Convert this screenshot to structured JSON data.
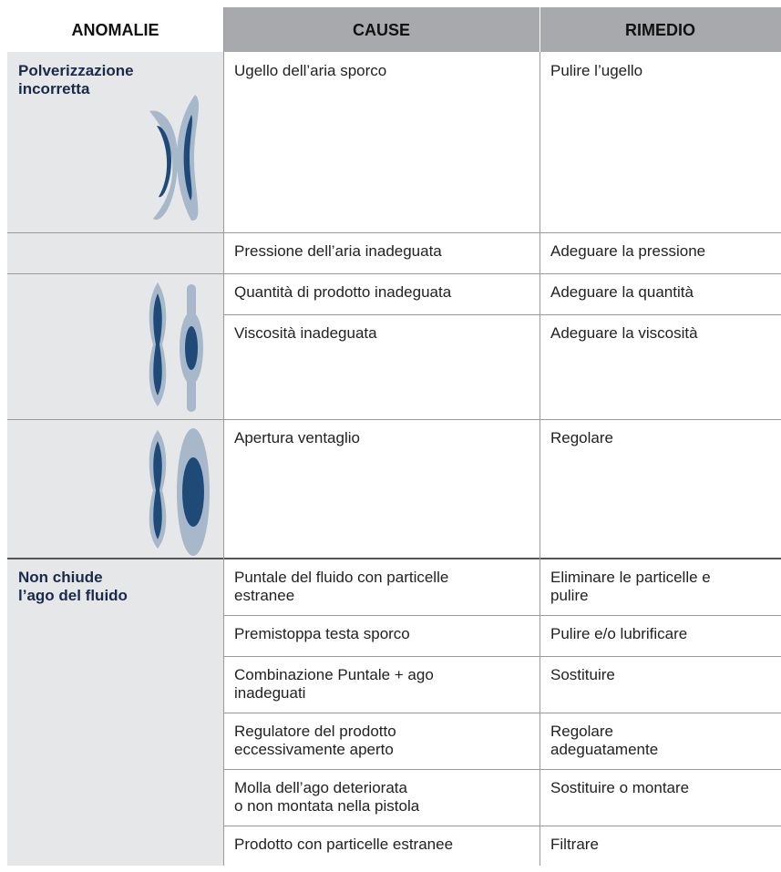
{
  "table": {
    "header": [
      "ANOMALIE",
      "CAUSE",
      "RIMEDIO"
    ],
    "anomalies": [
      "Polverizzazione\nincorretta",
      "Non chiude\nl’ago del fluido"
    ],
    "rows": [
      [
        "Ugello dell’aria sporco",
        "Pulire l’ugello"
      ],
      [
        "Pressione dell’aria inadeguata",
        "Adeguare la pressione"
      ],
      [
        "Quantità di prodotto inadeguata",
        "Adeguare la quantità"
      ],
      [
        "Viscosità inadeguata",
        "Adeguare la viscosità"
      ],
      [
        "Apertura ventaglio",
        "Regolare"
      ],
      [
        "Puntale del fluido con particelle\nestranee",
        "Eliminare le particelle e\npulire"
      ],
      [
        "Premistoppa testa sporco",
        "Pulire e/o lubrificare"
      ],
      [
        "Combinazione Puntale + ago\ninadeguati",
        "Sostituire"
      ],
      [
        "Regulatore del prodotto\neccessivamente aperto",
        "Regolare\nadeguatamente"
      ],
      [
        "Molla dell’ago deteriorata\no non montata nella pistola",
        "Sostituire o montare"
      ],
      [
        "Prodotto con particelle estranee",
        "Filtrare"
      ]
    ]
  }
}
